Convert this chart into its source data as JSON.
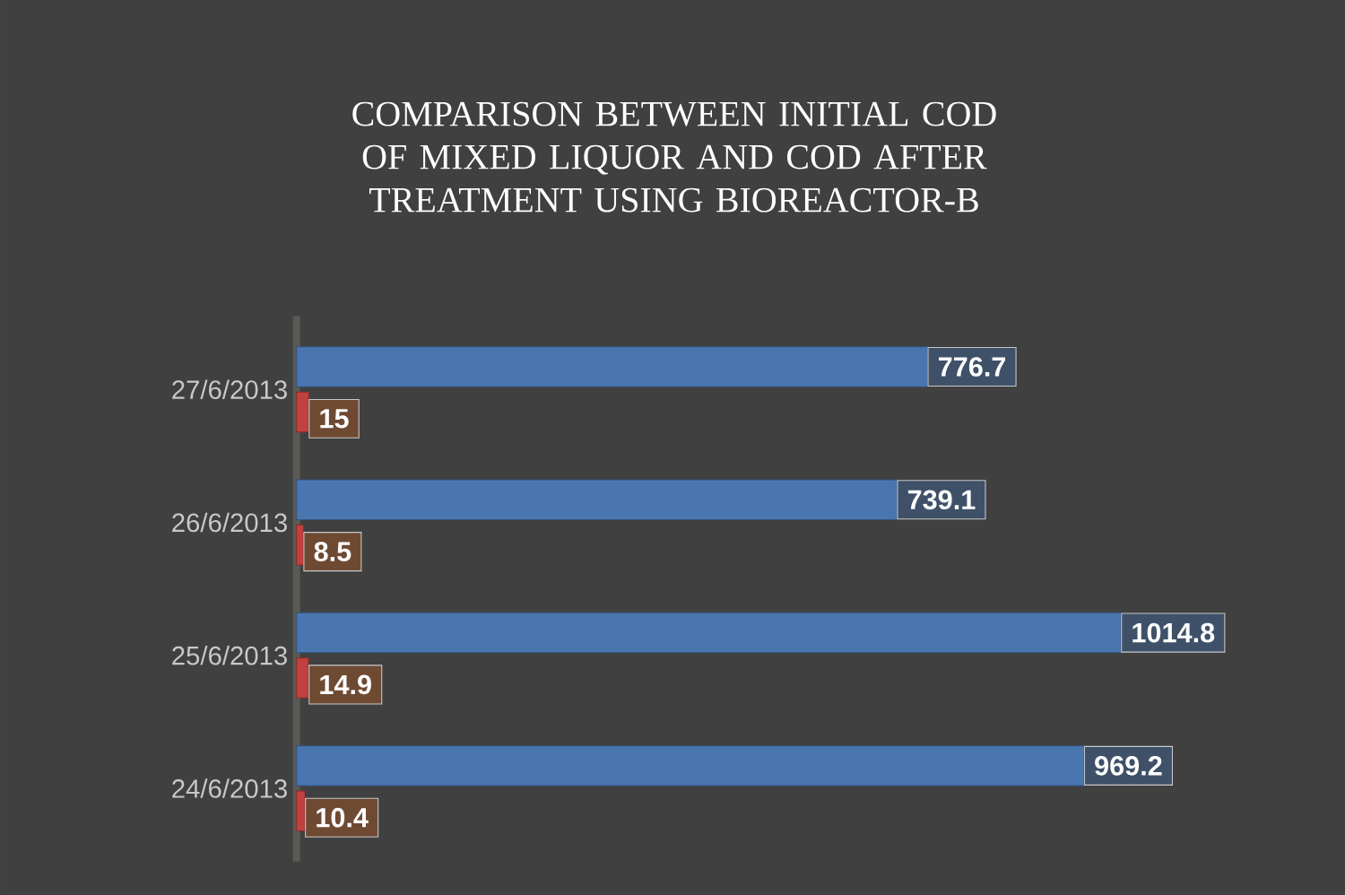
{
  "chart_data": {
    "type": "bar",
    "orientation": "horizontal",
    "title": "COMPARISON BETWEEN INITIAL COD OF MIXED LIQUOR AND COD AFTER TREATMENT USING BIOREACTOR-B",
    "categories": [
      "27/6/2013",
      "26/6/2013",
      "25/6/2013",
      "24/6/2013"
    ],
    "series": [
      {
        "color": "#4a76b0",
        "values": [
          776.7,
          739.1,
          1014.8,
          969.2
        ]
      },
      {
        "color": "#c0413e",
        "values": [
          15,
          8.5,
          14.9,
          10.4
        ]
      }
    ],
    "data_labels": true
  }
}
